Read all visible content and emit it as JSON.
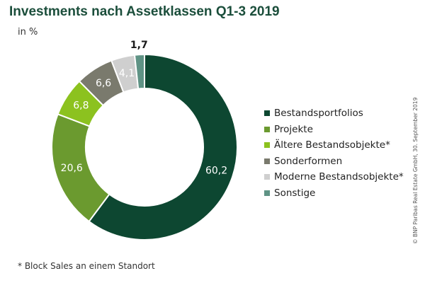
{
  "chart_data": {
    "type": "pie",
    "title": "Investments nach Assetklassen Q1-3 2019",
    "unit_label": "in %",
    "slices": [
      {
        "name": "Bestandsportfolios",
        "value": 60.2,
        "label": "60,2",
        "color": "#0d4731"
      },
      {
        "name": "Projekte",
        "value": 20.6,
        "label": "20,6",
        "color": "#6b9a2f"
      },
      {
        "name": "Ältere Bestandsobjekte*",
        "value": 6.8,
        "label": "6,8",
        "color": "#8cc21f"
      },
      {
        "name": "Sonderformen",
        "value": 6.6,
        "label": "6,6",
        "color": "#7a7a6d"
      },
      {
        "name": "Moderne Bestandsobjekte*",
        "value": 4.1,
        "label": "4,1",
        "color": "#cfcfcf"
      },
      {
        "name": "Sonstige",
        "value": 1.7,
        "label": "1,7",
        "color": "#5f9385"
      }
    ],
    "legend_position": "right"
  },
  "footnote": "* Block Sales an einem Standort",
  "source": "© BNP Paribas Real Estate GmbH, 30. September 2019"
}
